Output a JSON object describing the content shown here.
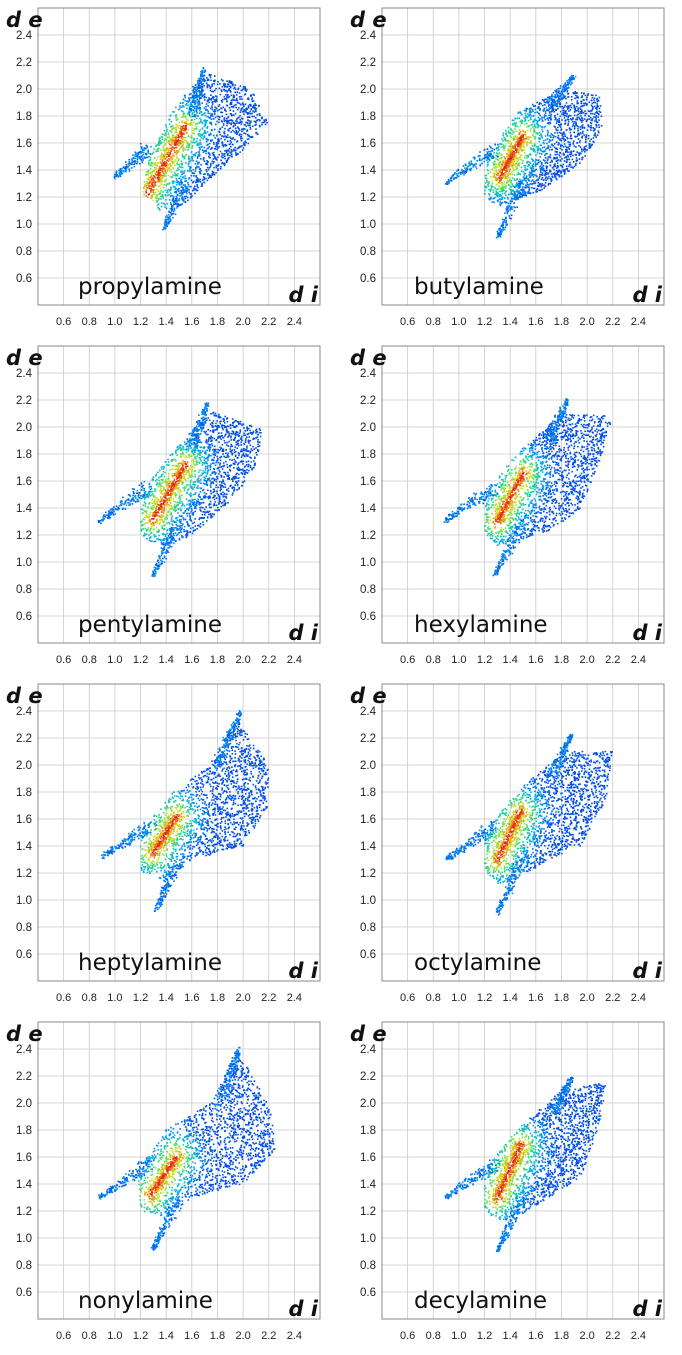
{
  "chart_data": [
    {
      "type": "scatter",
      "title": "propylamine",
      "xlabel": "d i",
      "ylabel": "d e",
      "x_ticks": [
        "0.6",
        "0.8",
        "1.0",
        "1.2",
        "1.4",
        "1.6",
        "1.8",
        "2.0",
        "2.2",
        "2.4"
      ],
      "y_ticks": [
        "0.6",
        "0.8",
        "1.0",
        "1.2",
        "1.4",
        "1.6",
        "1.8",
        "2.0",
        "2.2",
        "2.4"
      ],
      "xlim": [
        0.4,
        2.6
      ],
      "ylim": [
        0.4,
        2.6
      ],
      "grid": true,
      "colormap": "blue-cyan-green-yellow-red density",
      "series": [
        {
          "kind": "body",
          "points": [
            [
              1.22,
              1.26
            ],
            [
              1.25,
              1.45
            ],
            [
              1.45,
              1.85
            ],
            [
              1.7,
              2.12
            ],
            [
              2.05,
              2.02
            ],
            [
              2.2,
              1.75
            ],
            [
              2.0,
              1.55
            ],
            [
              1.7,
              1.3
            ],
            [
              1.55,
              1.15
            ],
            [
              1.35,
              1.1
            ]
          ]
        },
        {
          "kind": "spike",
          "points": [
            [
              1.0,
              1.35
            ],
            [
              1.25,
              1.55
            ]
          ]
        },
        {
          "kind": "spike",
          "points": [
            [
              1.38,
              0.96
            ],
            [
              1.55,
              1.3
            ]
          ]
        },
        {
          "kind": "spike",
          "points": [
            [
              1.7,
              2.15
            ],
            [
              1.6,
              1.8
            ]
          ]
        },
        {
          "kind": "hot",
          "points": [
            [
              1.25,
              1.22
            ],
            [
              1.55,
              1.72
            ]
          ]
        }
      ]
    },
    {
      "type": "scatter",
      "title": "butylamine",
      "xlabel": "d i",
      "ylabel": "d e",
      "x_ticks": [
        "0.6",
        "0.8",
        "1.0",
        "1.2",
        "1.4",
        "1.6",
        "1.8",
        "2.0",
        "2.2",
        "2.4"
      ],
      "y_ticks": [
        "0.6",
        "0.8",
        "1.0",
        "1.2",
        "1.4",
        "1.6",
        "1.8",
        "2.0",
        "2.2",
        "2.4"
      ],
      "xlim": [
        0.4,
        2.6
      ],
      "ylim": [
        0.4,
        2.6
      ],
      "grid": true,
      "colormap": "blue-cyan-green-yellow-red density",
      "series": [
        {
          "kind": "body",
          "points": [
            [
              1.2,
              1.22
            ],
            [
              1.22,
              1.5
            ],
            [
              1.45,
              1.82
            ],
            [
              1.8,
              2.0
            ],
            [
              2.1,
              1.95
            ],
            [
              2.12,
              1.7
            ],
            [
              1.95,
              1.45
            ],
            [
              1.65,
              1.25
            ],
            [
              1.45,
              1.18
            ],
            [
              1.3,
              1.12
            ]
          ]
        },
        {
          "kind": "spike",
          "points": [
            [
              0.9,
              1.3
            ],
            [
              1.28,
              1.55
            ]
          ]
        },
        {
          "kind": "spike",
          "points": [
            [
              1.3,
              0.9
            ],
            [
              1.5,
              1.3
            ]
          ]
        },
        {
          "kind": "spike",
          "points": [
            [
              1.9,
              2.1
            ],
            [
              1.7,
              1.85
            ]
          ]
        },
        {
          "kind": "hot",
          "points": [
            [
              1.32,
              1.35
            ],
            [
              1.5,
              1.65
            ]
          ]
        }
      ]
    },
    {
      "type": "scatter",
      "title": "pentylamine",
      "xlabel": "d i",
      "ylabel": "d e",
      "x_ticks": [
        "0.6",
        "0.8",
        "1.0",
        "1.2",
        "1.4",
        "1.6",
        "1.8",
        "2.0",
        "2.2",
        "2.4"
      ],
      "y_ticks": [
        "0.6",
        "0.8",
        "1.0",
        "1.2",
        "1.4",
        "1.6",
        "1.8",
        "2.0",
        "2.2",
        "2.4"
      ],
      "xlim": [
        0.4,
        2.6
      ],
      "ylim": [
        0.4,
        2.6
      ],
      "grid": true,
      "colormap": "blue-cyan-green-yellow-red density",
      "series": [
        {
          "kind": "body",
          "points": [
            [
              1.2,
              1.22
            ],
            [
              1.2,
              1.5
            ],
            [
              1.45,
              1.82
            ],
            [
              1.75,
              2.12
            ],
            [
              2.15,
              1.98
            ],
            [
              2.1,
              1.7
            ],
            [
              1.9,
              1.45
            ],
            [
              1.6,
              1.2
            ],
            [
              1.4,
              1.12
            ],
            [
              1.25,
              1.15
            ]
          ]
        },
        {
          "kind": "spike",
          "points": [
            [
              0.88,
              1.3
            ],
            [
              1.25,
              1.55
            ]
          ]
        },
        {
          "kind": "spike",
          "points": [
            [
              1.3,
              0.9
            ],
            [
              1.5,
              1.3
            ]
          ]
        },
        {
          "kind": "spike",
          "points": [
            [
              1.72,
              2.18
            ],
            [
              1.6,
              1.85
            ]
          ]
        },
        {
          "kind": "hot",
          "points": [
            [
              1.3,
              1.32
            ],
            [
              1.55,
              1.72
            ]
          ]
        }
      ]
    },
    {
      "type": "scatter",
      "title": "hexylamine",
      "xlabel": "d i",
      "ylabel": "d e",
      "x_ticks": [
        "0.6",
        "0.8",
        "1.0",
        "1.2",
        "1.4",
        "1.6",
        "1.8",
        "2.0",
        "2.2",
        "2.4"
      ],
      "y_ticks": [
        "0.6",
        "0.8",
        "1.0",
        "1.2",
        "1.4",
        "1.6",
        "1.8",
        "2.0",
        "2.2",
        "2.4"
      ],
      "xlim": [
        0.4,
        2.6
      ],
      "ylim": [
        0.4,
        2.6
      ],
      "grid": true,
      "colormap": "blue-cyan-green-yellow-red density",
      "series": [
        {
          "kind": "body",
          "points": [
            [
              1.2,
              1.22
            ],
            [
              1.2,
              1.5
            ],
            [
              1.45,
              1.8
            ],
            [
              1.8,
              2.1
            ],
            [
              2.2,
              2.08
            ],
            [
              2.1,
              1.75
            ],
            [
              1.95,
              1.4
            ],
            [
              1.75,
              1.25
            ],
            [
              1.45,
              1.15
            ],
            [
              1.3,
              1.12
            ]
          ]
        },
        {
          "kind": "spike",
          "points": [
            [
              0.88,
              1.3
            ],
            [
              1.28,
              1.55
            ]
          ]
        },
        {
          "kind": "spike",
          "points": [
            [
              1.28,
              0.9
            ],
            [
              1.5,
              1.3
            ]
          ]
        },
        {
          "kind": "spike",
          "points": [
            [
              1.85,
              2.2
            ],
            [
              1.7,
              1.9
            ]
          ]
        },
        {
          "kind": "hot",
          "points": [
            [
              1.3,
              1.3
            ],
            [
              1.5,
              1.65
            ]
          ]
        }
      ]
    },
    {
      "type": "scatter",
      "title": "heptylamine",
      "xlabel": "d i",
      "ylabel": "d e",
      "x_ticks": [
        "0.6",
        "0.8",
        "1.0",
        "1.2",
        "1.4",
        "1.6",
        "1.8",
        "2.0",
        "2.2",
        "2.4"
      ],
      "y_ticks": [
        "0.6",
        "0.8",
        "1.0",
        "1.2",
        "1.4",
        "1.6",
        "1.8",
        "2.0",
        "2.2",
        "2.4"
      ],
      "xlim": [
        0.4,
        2.6
      ],
      "ylim": [
        0.4,
        2.6
      ],
      "grid": true,
      "colormap": "blue-cyan-green-yellow-red density",
      "series": [
        {
          "kind": "body",
          "points": [
            [
              1.2,
              1.2
            ],
            [
              1.2,
              1.5
            ],
            [
              1.45,
              1.8
            ],
            [
              1.75,
              2.0
            ],
            [
              1.95,
              2.35
            ],
            [
              2.2,
              2.0
            ],
            [
              2.2,
              1.7
            ],
            [
              2.0,
              1.4
            ],
            [
              1.6,
              1.3
            ],
            [
              1.4,
              1.15
            ]
          ]
        },
        {
          "kind": "spike",
          "points": [
            [
              0.9,
              1.32
            ],
            [
              1.28,
              1.55
            ]
          ]
        },
        {
          "kind": "spike",
          "points": [
            [
              1.32,
              0.92
            ],
            [
              1.5,
              1.3
            ]
          ]
        },
        {
          "kind": "spike",
          "points": [
            [
              1.98,
              2.4
            ],
            [
              1.8,
              2.0
            ]
          ]
        },
        {
          "kind": "hot",
          "points": [
            [
              1.3,
              1.35
            ],
            [
              1.48,
              1.62
            ]
          ]
        }
      ]
    },
    {
      "type": "scatter",
      "title": "octylamine",
      "xlabel": "d i",
      "ylabel": "d e",
      "x_ticks": [
        "0.6",
        "0.8",
        "1.0",
        "1.2",
        "1.4",
        "1.6",
        "1.8",
        "2.0",
        "2.2",
        "2.4"
      ],
      "y_ticks": [
        "0.6",
        "0.8",
        "1.0",
        "1.2",
        "1.4",
        "1.6",
        "1.8",
        "2.0",
        "2.2",
        "2.4"
      ],
      "xlim": [
        0.4,
        2.6
      ],
      "ylim": [
        0.4,
        2.6
      ],
      "grid": true,
      "colormap": "blue-cyan-green-yellow-red density",
      "series": [
        {
          "kind": "body",
          "points": [
            [
              1.2,
              1.22
            ],
            [
              1.2,
              1.5
            ],
            [
              1.45,
              1.8
            ],
            [
              1.8,
              2.1
            ],
            [
              2.2,
              2.1
            ],
            [
              2.15,
              1.75
            ],
            [
              1.95,
              1.4
            ],
            [
              1.7,
              1.3
            ],
            [
              1.45,
              1.15
            ],
            [
              1.3,
              1.12
            ]
          ]
        },
        {
          "kind": "spike",
          "points": [
            [
              0.9,
              1.3
            ],
            [
              1.28,
              1.55
            ]
          ]
        },
        {
          "kind": "spike",
          "points": [
            [
              1.3,
              0.9
            ],
            [
              1.5,
              1.3
            ]
          ]
        },
        {
          "kind": "spike",
          "points": [
            [
              1.88,
              2.22
            ],
            [
              1.72,
              1.9
            ]
          ]
        },
        {
          "kind": "hot",
          "points": [
            [
              1.3,
              1.3
            ],
            [
              1.48,
              1.65
            ]
          ]
        }
      ]
    },
    {
      "type": "scatter",
      "title": "nonylamine",
      "xlabel": "d i",
      "ylabel": "d e",
      "x_ticks": [
        "0.6",
        "0.8",
        "1.0",
        "1.2",
        "1.4",
        "1.6",
        "1.8",
        "2.0",
        "2.2",
        "2.4"
      ],
      "y_ticks": [
        "0.6",
        "0.8",
        "1.0",
        "1.2",
        "1.4",
        "1.6",
        "1.8",
        "2.0",
        "2.2",
        "2.4"
      ],
      "xlim": [
        0.4,
        2.6
      ],
      "ylim": [
        0.4,
        2.6
      ],
      "grid": true,
      "colormap": "blue-cyan-green-yellow-red density",
      "series": [
        {
          "kind": "body",
          "points": [
            [
              1.2,
              1.2
            ],
            [
              1.18,
              1.5
            ],
            [
              1.4,
              1.8
            ],
            [
              1.75,
              2.0
            ],
            [
              1.95,
              2.4
            ],
            [
              2.22,
              1.95
            ],
            [
              2.25,
              1.65
            ],
            [
              2.0,
              1.4
            ],
            [
              1.6,
              1.3
            ],
            [
              1.4,
              1.15
            ]
          ]
        },
        {
          "kind": "spike",
          "points": [
            [
              0.88,
              1.3
            ],
            [
              1.28,
              1.55
            ]
          ]
        },
        {
          "kind": "spike",
          "points": [
            [
              1.3,
              0.92
            ],
            [
              1.5,
              1.3
            ]
          ]
        },
        {
          "kind": "spike",
          "points": [
            [
              1.98,
              2.42
            ],
            [
              1.82,
              2.0
            ]
          ]
        },
        {
          "kind": "hot",
          "points": [
            [
              1.28,
              1.32
            ],
            [
              1.48,
              1.6
            ]
          ]
        }
      ]
    },
    {
      "type": "scatter",
      "title": "decylamine",
      "xlabel": "d i",
      "ylabel": "d e",
      "x_ticks": [
        "0.6",
        "0.8",
        "1.0",
        "1.2",
        "1.4",
        "1.6",
        "1.8",
        "2.0",
        "2.2",
        "2.4"
      ],
      "y_ticks": [
        "0.6",
        "0.8",
        "1.0",
        "1.2",
        "1.4",
        "1.6",
        "1.8",
        "2.0",
        "2.2",
        "2.4"
      ],
      "xlim": [
        0.4,
        2.6
      ],
      "ylim": [
        0.4,
        2.6
      ],
      "grid": true,
      "colormap": "blue-cyan-green-yellow-red density",
      "series": [
        {
          "kind": "body",
          "points": [
            [
              1.2,
              1.22
            ],
            [
              1.2,
              1.5
            ],
            [
              1.45,
              1.8
            ],
            [
              1.8,
              2.1
            ],
            [
              2.15,
              2.15
            ],
            [
              2.1,
              1.85
            ],
            [
              1.95,
              1.45
            ],
            [
              1.7,
              1.3
            ],
            [
              1.45,
              1.15
            ],
            [
              1.3,
              1.12
            ]
          ]
        },
        {
          "kind": "spike",
          "points": [
            [
              0.9,
              1.3
            ],
            [
              1.28,
              1.55
            ]
          ]
        },
        {
          "kind": "spike",
          "points": [
            [
              1.3,
              0.9
            ],
            [
              1.5,
              1.3
            ]
          ]
        },
        {
          "kind": "spike",
          "points": [
            [
              1.88,
              2.18
            ],
            [
              1.72,
              1.9
            ]
          ]
        },
        {
          "kind": "hot",
          "points": [
            [
              1.3,
              1.3
            ],
            [
              1.48,
              1.68
            ]
          ]
        }
      ]
    }
  ]
}
